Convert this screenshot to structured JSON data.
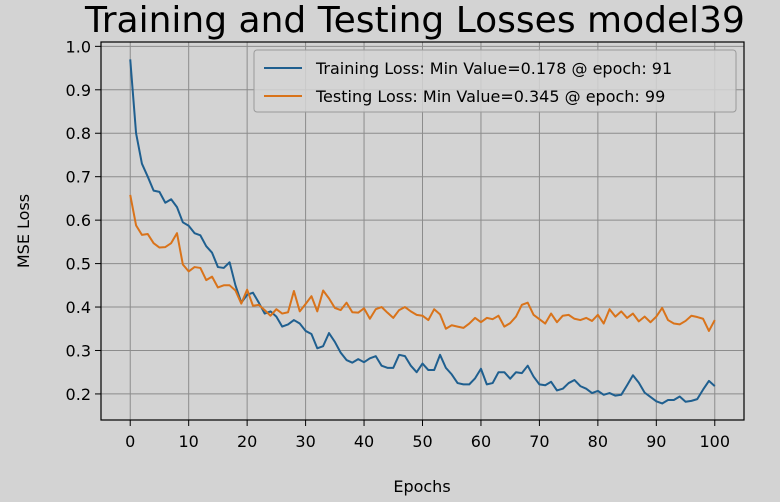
{
  "chart_data": {
    "type": "line",
    "title": "Training and Testing Losses model39",
    "xlabel": "Epochs",
    "ylabel": "MSE Loss",
    "xlim": [
      -5,
      105
    ],
    "ylim": [
      0.14,
      1.01
    ],
    "xticks": [
      0,
      10,
      20,
      30,
      40,
      50,
      60,
      70,
      80,
      90,
      100
    ],
    "yticks": [
      0.2,
      0.3,
      0.4,
      0.5,
      0.6,
      0.7,
      0.8,
      0.9,
      1.0
    ],
    "ytick_labels": [
      "0.2",
      "0.3",
      "0.4",
      "0.5",
      "0.6",
      "0.7",
      "0.8",
      "0.9",
      "1.0"
    ],
    "grid": true,
    "legend_position": "top-right",
    "series": [
      {
        "name": "Training Loss: Min Value=0.178 @ epoch: 91",
        "color": "#1f5f8f",
        "values": [
          0.97,
          0.8,
          0.73,
          0.7,
          0.668,
          0.665,
          0.64,
          0.648,
          0.63,
          0.595,
          0.587,
          0.57,
          0.565,
          0.54,
          0.525,
          0.492,
          0.49,
          0.503,
          0.45,
          0.41,
          0.428,
          0.433,
          0.41,
          0.385,
          0.39,
          0.378,
          0.355,
          0.36,
          0.37,
          0.362,
          0.345,
          0.338,
          0.305,
          0.31,
          0.34,
          0.32,
          0.295,
          0.278,
          0.272,
          0.28,
          0.273,
          0.282,
          0.287,
          0.265,
          0.26,
          0.26,
          0.29,
          0.287,
          0.265,
          0.25,
          0.27,
          0.255,
          0.255,
          0.29,
          0.26,
          0.245,
          0.225,
          0.222,
          0.222,
          0.236,
          0.258,
          0.222,
          0.225,
          0.25,
          0.25,
          0.235,
          0.25,
          0.248,
          0.265,
          0.24,
          0.222,
          0.22,
          0.228,
          0.208,
          0.212,
          0.225,
          0.232,
          0.218,
          0.212,
          0.202,
          0.207,
          0.198,
          0.202,
          0.196,
          0.198,
          0.22,
          0.243,
          0.226,
          0.203,
          0.193,
          0.183,
          0.178,
          0.186,
          0.186,
          0.194,
          0.182,
          0.184,
          0.188,
          0.21,
          0.23,
          0.218
        ]
      },
      {
        "name": "Testing Loss: Min Value=0.345 @ epoch: 99",
        "color": "#d9731a",
        "values": [
          0.658,
          0.588,
          0.566,
          0.568,
          0.547,
          0.537,
          0.538,
          0.547,
          0.57,
          0.498,
          0.482,
          0.492,
          0.49,
          0.462,
          0.47,
          0.445,
          0.45,
          0.45,
          0.438,
          0.408,
          0.44,
          0.403,
          0.405,
          0.393,
          0.38,
          0.395,
          0.385,
          0.388,
          0.437,
          0.39,
          0.407,
          0.425,
          0.39,
          0.438,
          0.42,
          0.398,
          0.393,
          0.41,
          0.388,
          0.387,
          0.397,
          0.373,
          0.395,
          0.4,
          0.387,
          0.375,
          0.393,
          0.4,
          0.39,
          0.382,
          0.38,
          0.37,
          0.395,
          0.383,
          0.35,
          0.358,
          0.355,
          0.352,
          0.362,
          0.375,
          0.365,
          0.375,
          0.372,
          0.38,
          0.355,
          0.363,
          0.378,
          0.405,
          0.41,
          0.382,
          0.372,
          0.362,
          0.385,
          0.365,
          0.38,
          0.382,
          0.373,
          0.37,
          0.375,
          0.368,
          0.382,
          0.362,
          0.395,
          0.378,
          0.39,
          0.375,
          0.385,
          0.367,
          0.378,
          0.365,
          0.378,
          0.398,
          0.37,
          0.362,
          0.36,
          0.368,
          0.38,
          0.377,
          0.373,
          0.345,
          0.37
        ]
      }
    ]
  }
}
